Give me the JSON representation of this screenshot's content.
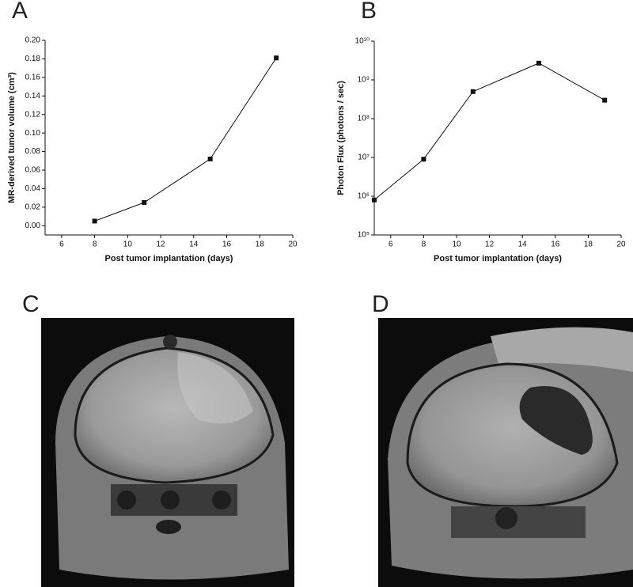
{
  "chart_data": [
    {
      "type": "line",
      "panel_label": "A",
      "x_label": "Post tumor implantation (days)",
      "y_label": "MR-derived tumor volume (cm³)",
      "x": [
        8,
        11,
        15,
        19
      ],
      "values": [
        0.005,
        0.025,
        0.072,
        0.181
      ],
      "color": "#111111",
      "xlim": [
        5,
        20
      ],
      "xticks": [
        6,
        8,
        10,
        12,
        14,
        16,
        18,
        20
      ],
      "ylim": [
        -0.01,
        0.2
      ],
      "yticks": [
        {
          "value": 0,
          "label": "0.00"
        },
        {
          "value": 0.02,
          "label": "0.02"
        },
        {
          "value": 0.04,
          "label": "0.04"
        },
        {
          "value": 0.06,
          "label": "0.06"
        },
        {
          "value": 0.08,
          "label": "0.08"
        },
        {
          "value": 0.1,
          "label": "0.10"
        },
        {
          "value": 0.12,
          "label": "0.12"
        },
        {
          "value": 0.14,
          "label": "0.14"
        },
        {
          "value": 0.16,
          "label": "0.16"
        },
        {
          "value": 0.18,
          "label": "0.18"
        },
        {
          "value": 0.2,
          "label": "0.20"
        }
      ],
      "log_y": false
    },
    {
      "type": "line",
      "panel_label": "B",
      "x_label": "Post tumor implantation (days)",
      "y_label": "Photon Flux (photons / sec)",
      "x": [
        5,
        8,
        11,
        15,
        19
      ],
      "values": [
        800000,
        9000000,
        500000000,
        2700000000,
        300000000
      ],
      "color": "#111111",
      "xlim": [
        5,
        20
      ],
      "xticks": [
        6,
        8,
        10,
        12,
        14,
        16,
        18,
        20
      ],
      "ylim": [
        100000,
        10000000000
      ],
      "yticks": [
        {
          "value": 100000,
          "label": "10⁵"
        },
        {
          "value": 1000000,
          "label": "10⁶"
        },
        {
          "value": 10000000,
          "label": "10⁷"
        },
        {
          "value": 100000000,
          "label": "10⁸"
        },
        {
          "value": 1000000000,
          "label": "10⁹"
        },
        {
          "value": 10000000000,
          "label": "10¹⁰"
        }
      ],
      "log_y": true
    }
  ],
  "panels": [
    {
      "label": "C"
    },
    {
      "label": "D"
    }
  ]
}
